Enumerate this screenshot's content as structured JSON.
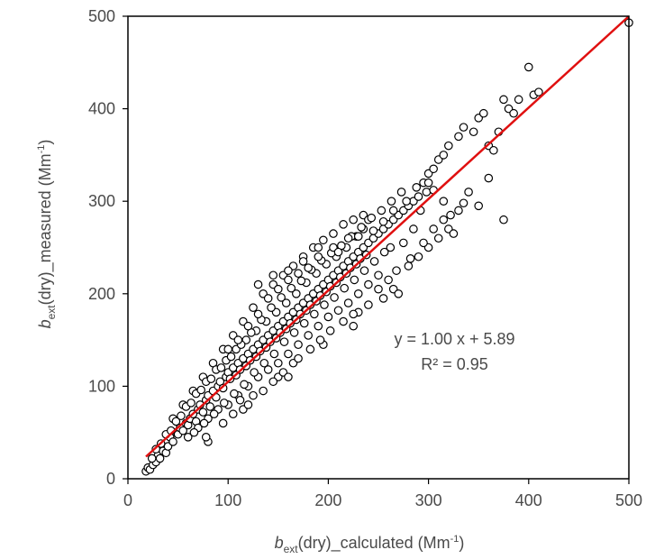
{
  "chart_data": {
    "type": "scatter",
    "title": "",
    "xlabel": {
      "symbol": "b",
      "subscript": "ext",
      "text": "(dry)_calculated (Mm",
      "sup": "-1",
      "close": ")"
    },
    "ylabel": {
      "symbol": "b",
      "subscript": "ext",
      "text": "(dry)_measured (Mm",
      "sup": "-1",
      "close": ")"
    },
    "xlim": [
      0,
      500
    ],
    "ylim": [
      0,
      500
    ],
    "x_ticks": [
      "0",
      "100",
      "200",
      "300",
      "400",
      "500"
    ],
    "y_ticks": [
      "0",
      "100",
      "200",
      "300",
      "400",
      "500"
    ],
    "grid": false,
    "fit_line": {
      "slope": 1.0,
      "intercept": 5.89,
      "x_range": [
        18,
        500
      ],
      "color": "#e01010"
    },
    "annotations": [
      "y = 1.00 x + 5.89",
      "R² = 0.95"
    ],
    "marker": {
      "fill": "#ffffff",
      "stroke": "#000000"
    },
    "points": [
      [
        18,
        8
      ],
      [
        20,
        12
      ],
      [
        22,
        10
      ],
      [
        25,
        15
      ],
      [
        28,
        18
      ],
      [
        30,
        25
      ],
      [
        32,
        22
      ],
      [
        35,
        30
      ],
      [
        38,
        28
      ],
      [
        40,
        35
      ],
      [
        42,
        45
      ],
      [
        45,
        40
      ],
      [
        48,
        50
      ],
      [
        50,
        48
      ],
      [
        52,
        55
      ],
      [
        55,
        52
      ],
      [
        58,
        60
      ],
      [
        60,
        58
      ],
      [
        62,
        65
      ],
      [
        65,
        70
      ],
      [
        68,
        62
      ],
      [
        70,
        75
      ],
      [
        72,
        80
      ],
      [
        75,
        72
      ],
      [
        78,
        85
      ],
      [
        80,
        90
      ],
      [
        82,
        78
      ],
      [
        85,
        95
      ],
      [
        88,
        88
      ],
      [
        90,
        100
      ],
      [
        92,
        105
      ],
      [
        95,
        98
      ],
      [
        98,
        110
      ],
      [
        100,
        115
      ],
      [
        102,
        108
      ],
      [
        105,
        120
      ],
      [
        108,
        112
      ],
      [
        110,
        125
      ],
      [
        112,
        118
      ],
      [
        115,
        130
      ],
      [
        118,
        122
      ],
      [
        120,
        135
      ],
      [
        122,
        128
      ],
      [
        125,
        140
      ],
      [
        128,
        132
      ],
      [
        130,
        145
      ],
      [
        132,
        138
      ],
      [
        135,
        150
      ],
      [
        138,
        142
      ],
      [
        140,
        155
      ],
      [
        142,
        148
      ],
      [
        145,
        160
      ],
      [
        148,
        152
      ],
      [
        150,
        165
      ],
      [
        152,
        158
      ],
      [
        155,
        170
      ],
      [
        158,
        162
      ],
      [
        160,
        175
      ],
      [
        162,
        168
      ],
      [
        165,
        180
      ],
      [
        168,
        172
      ],
      [
        170,
        185
      ],
      [
        172,
        178
      ],
      [
        175,
        190
      ],
      [
        178,
        182
      ],
      [
        180,
        195
      ],
      [
        182,
        188
      ],
      [
        185,
        200
      ],
      [
        188,
        192
      ],
      [
        190,
        205
      ],
      [
        192,
        198
      ],
      [
        195,
        210
      ],
      [
        198,
        202
      ],
      [
        200,
        215
      ],
      [
        202,
        208
      ],
      [
        205,
        220
      ],
      [
        208,
        212
      ],
      [
        210,
        225
      ],
      [
        212,
        218
      ],
      [
        215,
        230
      ],
      [
        218,
        222
      ],
      [
        220,
        235
      ],
      [
        222,
        228
      ],
      [
        225,
        240
      ],
      [
        228,
        232
      ],
      [
        230,
        245
      ],
      [
        232,
        238
      ],
      [
        235,
        250
      ],
      [
        238,
        242
      ],
      [
        240,
        255
      ],
      [
        245,
        260
      ],
      [
        250,
        265
      ],
      [
        255,
        270
      ],
      [
        260,
        275
      ],
      [
        265,
        280
      ],
      [
        270,
        285
      ],
      [
        275,
        290
      ],
      [
        280,
        295
      ],
      [
        285,
        300
      ],
      [
        290,
        305
      ],
      [
        60,
        45
      ],
      [
        70,
        55
      ],
      [
        80,
        65
      ],
      [
        90,
        75
      ],
      [
        100,
        80
      ],
      [
        110,
        90
      ],
      [
        120,
        100
      ],
      [
        130,
        110
      ],
      [
        140,
        118
      ],
      [
        150,
        125
      ],
      [
        160,
        135
      ],
      [
        170,
        145
      ],
      [
        180,
        155
      ],
      [
        190,
        165
      ],
      [
        200,
        175
      ],
      [
        210,
        182
      ],
      [
        220,
        190
      ],
      [
        230,
        200
      ],
      [
        240,
        210
      ],
      [
        250,
        220
      ],
      [
        45,
        65
      ],
      [
        55,
        80
      ],
      [
        65,
        95
      ],
      [
        75,
        110
      ],
      [
        85,
        125
      ],
      [
        95,
        140
      ],
      [
        105,
        155
      ],
      [
        115,
        170
      ],
      [
        125,
        185
      ],
      [
        135,
        200
      ],
      [
        145,
        210
      ],
      [
        155,
        220
      ],
      [
        165,
        230
      ],
      [
        175,
        240
      ],
      [
        185,
        250
      ],
      [
        195,
        258
      ],
      [
        205,
        265
      ],
      [
        215,
        275
      ],
      [
        225,
        280
      ],
      [
        235,
        285
      ],
      [
        80,
        40
      ],
      [
        78,
        45
      ],
      [
        115,
        75
      ],
      [
        120,
        80
      ],
      [
        150,
        110
      ],
      [
        165,
        125
      ],
      [
        195,
        145
      ],
      [
        225,
        165
      ],
      [
        230,
        180
      ],
      [
        255,
        195
      ],
      [
        265,
        205
      ],
      [
        270,
        200
      ],
      [
        280,
        230
      ],
      [
        290,
        240
      ],
      [
        300,
        250
      ],
      [
        310,
        260
      ],
      [
        320,
        270
      ],
      [
        325,
        265
      ],
      [
        330,
        290
      ],
      [
        340,
        310
      ],
      [
        295,
        320
      ],
      [
        300,
        330
      ],
      [
        305,
        335
      ],
      [
        310,
        345
      ],
      [
        315,
        350
      ],
      [
        320,
        360
      ],
      [
        330,
        370
      ],
      [
        335,
        380
      ],
      [
        345,
        375
      ],
      [
        350,
        390
      ],
      [
        355,
        395
      ],
      [
        360,
        360
      ],
      [
        365,
        355
      ],
      [
        370,
        375
      ],
      [
        375,
        410
      ],
      [
        380,
        400
      ],
      [
        385,
        395
      ],
      [
        390,
        410
      ],
      [
        400,
        445
      ],
      [
        405,
        415
      ],
      [
        410,
        418
      ],
      [
        360,
        325
      ],
      [
        350,
        295
      ],
      [
        375,
        280
      ],
      [
        315,
        300
      ],
      [
        298,
        310
      ],
      [
        292,
        290
      ],
      [
        285,
        270
      ],
      [
        275,
        255
      ],
      [
        262,
        250
      ],
      [
        500,
        493
      ],
      [
        235,
        270
      ],
      [
        240,
        280
      ],
      [
        228,
        262
      ],
      [
        218,
        250
      ],
      [
        208,
        240
      ],
      [
        198,
        232
      ],
      [
        188,
        222
      ],
      [
        178,
        212
      ],
      [
        168,
        200
      ],
      [
        158,
        190
      ],
      [
        148,
        180
      ],
      [
        138,
        170
      ],
      [
        128,
        160
      ],
      [
        118,
        150
      ],
      [
        108,
        140
      ],
      [
        98,
        128
      ],
      [
        88,
        118
      ],
      [
        78,
        105
      ],
      [
        68,
        92
      ],
      [
        58,
        78
      ],
      [
        48,
        62
      ],
      [
        38,
        48
      ],
      [
        28,
        32
      ],
      [
        24,
        22
      ],
      [
        33,
        38
      ],
      [
        43,
        52
      ],
      [
        53,
        68
      ],
      [
        63,
        82
      ],
      [
        73,
        96
      ],
      [
        83,
        108
      ],
      [
        93,
        120
      ],
      [
        103,
        132
      ],
      [
        113,
        145
      ],
      [
        123,
        158
      ],
      [
        133,
        172
      ],
      [
        143,
        185
      ],
      [
        153,
        196
      ],
      [
        163,
        206
      ],
      [
        173,
        214
      ],
      [
        183,
        226
      ],
      [
        193,
        236
      ],
      [
        203,
        244
      ],
      [
        213,
        252
      ],
      [
        223,
        262
      ],
      [
        233,
        272
      ],
      [
        243,
        282
      ],
      [
        253,
        290
      ],
      [
        263,
        300
      ],
      [
        273,
        310
      ],
      [
        66,
        50
      ],
      [
        76,
        60
      ],
      [
        86,
        70
      ],
      [
        96,
        82
      ],
      [
        106,
        92
      ],
      [
        116,
        102
      ],
      [
        126,
        115
      ],
      [
        136,
        125
      ],
      [
        146,
        135
      ],
      [
        156,
        148
      ],
      [
        166,
        158
      ],
      [
        176,
        168
      ],
      [
        186,
        178
      ],
      [
        196,
        188
      ],
      [
        206,
        196
      ],
      [
        216,
        206
      ],
      [
        226,
        215
      ],
      [
        236,
        225
      ],
      [
        246,
        235
      ],
      [
        256,
        245
      ],
      [
        100,
        140
      ],
      [
        110,
        150
      ],
      [
        120,
        165
      ],
      [
        130,
        178
      ],
      [
        140,
        195
      ],
      [
        150,
        205
      ],
      [
        160,
        215
      ],
      [
        170,
        222
      ],
      [
        180,
        228
      ],
      [
        190,
        240
      ],
      [
        130,
        210
      ],
      [
        145,
        220
      ],
      [
        160,
        225
      ],
      [
        175,
        235
      ],
      [
        190,
        250
      ],
      [
        205,
        250
      ],
      [
        210,
        245
      ],
      [
        220,
        260
      ],
      [
        230,
        262
      ],
      [
        245,
        268
      ],
      [
        255,
        278
      ],
      [
        265,
        290
      ],
      [
        278,
        300
      ],
      [
        288,
        315
      ],
      [
        300,
        320
      ],
      [
        305,
        312
      ],
      [
        95,
        60
      ],
      [
        105,
        70
      ],
      [
        112,
        85
      ],
      [
        125,
        90
      ],
      [
        135,
        95
      ],
      [
        145,
        105
      ],
      [
        155,
        115
      ],
      [
        160,
        110
      ],
      [
        170,
        130
      ],
      [
        182,
        140
      ],
      [
        192,
        150
      ],
      [
        202,
        160
      ],
      [
        215,
        170
      ],
      [
        225,
        178
      ],
      [
        240,
        188
      ],
      [
        250,
        205
      ],
      [
        260,
        215
      ],
      [
        268,
        225
      ],
      [
        282,
        238
      ],
      [
        295,
        255
      ],
      [
        305,
        270
      ],
      [
        315,
        280
      ],
      [
        322,
        285
      ],
      [
        335,
        298
      ]
    ]
  }
}
